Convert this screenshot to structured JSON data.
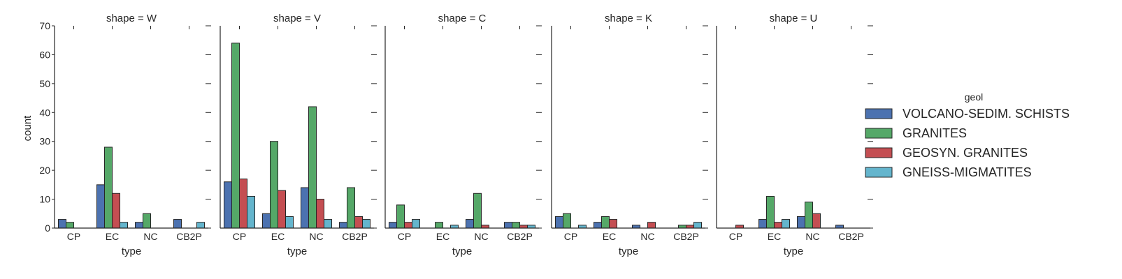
{
  "chart_data": {
    "type": "bar",
    "facet_titles": [
      "shape = W",
      "shape = V",
      "shape = C",
      "shape = K",
      "shape = U"
    ],
    "categories": [
      "CP",
      "EC",
      "NC",
      "CB2P"
    ],
    "xlabel": "type",
    "ylabel": "count",
    "ylim": [
      0,
      70
    ],
    "yticks": [
      0,
      10,
      20,
      30,
      40,
      50,
      60,
      70
    ],
    "grid": false,
    "legend": {
      "title": "geol",
      "placement": "right",
      "entries": [
        "VOLCANO-SEDIM. SCHISTS",
        "GRANITES",
        "GEOSYN. GRANITES",
        "GNEISS-MIGMATITES"
      ]
    },
    "colors": [
      "#4c72b0",
      "#55a868",
      "#c44e52",
      "#64b5cd"
    ],
    "panels": [
      {
        "title": "shape = W",
        "series": [
          {
            "name": "VOLCANO-SEDIM. SCHISTS",
            "values": [
              3,
              15,
              2,
              3
            ]
          },
          {
            "name": "GRANITES",
            "values": [
              2,
              28,
              5,
              0
            ]
          },
          {
            "name": "GEOSYN. GRANITES",
            "values": [
              0,
              12,
              0,
              0
            ]
          },
          {
            "name": "GNEISS-MIGMATITES",
            "values": [
              0,
              2,
              0,
              2
            ]
          }
        ]
      },
      {
        "title": "shape = V",
        "series": [
          {
            "name": "VOLCANO-SEDIM. SCHISTS",
            "values": [
              16,
              5,
              14,
              2
            ]
          },
          {
            "name": "GRANITES",
            "values": [
              64,
              30,
              42,
              14
            ]
          },
          {
            "name": "GEOSYN. GRANITES",
            "values": [
              17,
              13,
              10,
              4
            ]
          },
          {
            "name": "GNEISS-MIGMATITES",
            "values": [
              11,
              4,
              3,
              3
            ]
          }
        ]
      },
      {
        "title": "shape = C",
        "series": [
          {
            "name": "VOLCANO-SEDIM. SCHISTS",
            "values": [
              2,
              0,
              3,
              2
            ]
          },
          {
            "name": "GRANITES",
            "values": [
              8,
              2,
              12,
              2
            ]
          },
          {
            "name": "GEOSYN. GRANITES",
            "values": [
              2,
              0,
              1,
              1
            ]
          },
          {
            "name": "GNEISS-MIGMATITES",
            "values": [
              3,
              1,
              0,
              1
            ]
          }
        ]
      },
      {
        "title": "shape = K",
        "series": [
          {
            "name": "VOLCANO-SEDIM. SCHISTS",
            "values": [
              4,
              2,
              1,
              0
            ]
          },
          {
            "name": "GRANITES",
            "values": [
              5,
              4,
              0,
              1
            ]
          },
          {
            "name": "GEOSYN. GRANITES",
            "values": [
              0,
              3,
              2,
              1
            ]
          },
          {
            "name": "GNEISS-MIGMATITES",
            "values": [
              1,
              0,
              0,
              2
            ]
          }
        ]
      },
      {
        "title": "shape = U",
        "series": [
          {
            "name": "VOLCANO-SEDIM. SCHISTS",
            "values": [
              0,
              3,
              4,
              1
            ]
          },
          {
            "name": "GRANITES",
            "values": [
              0,
              11,
              9,
              0
            ]
          },
          {
            "name": "GEOSYN. GRANITES",
            "values": [
              1,
              2,
              5,
              0
            ]
          },
          {
            "name": "GNEISS-MIGMATITES",
            "values": [
              0,
              3,
              0,
              0
            ]
          }
        ]
      }
    ]
  }
}
